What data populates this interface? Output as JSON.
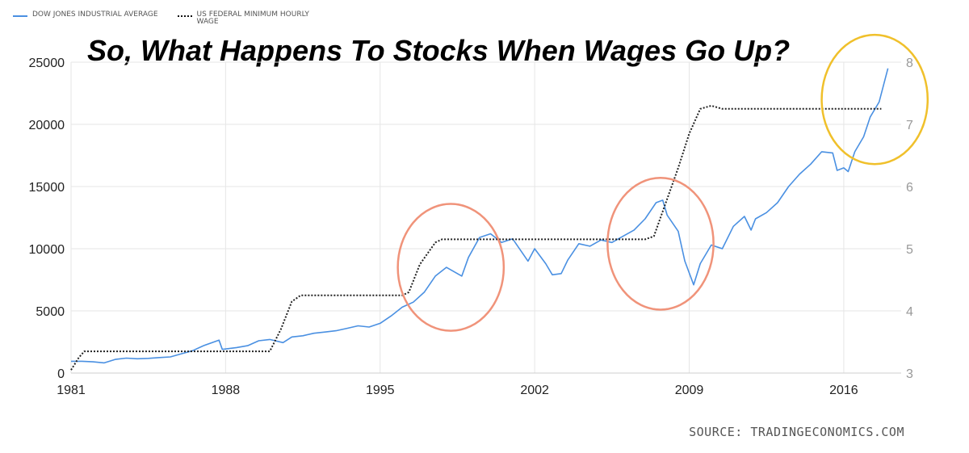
{
  "chart_data": {
    "type": "line",
    "title": "So, What Happens To Stocks When Wages Go Up?",
    "source": "SOURCE: TRADINGECONOMICS.COM",
    "legend": [
      "DOW JONES INDUSTRIAL AVERAGE",
      "US FEDERAL MINIMUM HOURLY\nWAGE"
    ],
    "legend_placement": "top-left",
    "grid": true,
    "x_ticks": [
      "1981",
      "1988",
      "1995",
      "2002",
      "2009",
      "2016"
    ],
    "y_left_ticks": [
      "0",
      "5000",
      "10000",
      "15000",
      "20000",
      "25000"
    ],
    "y_right_ticks": [
      "3",
      "4",
      "5",
      "6",
      "7",
      "8"
    ],
    "xlim": [
      1981,
      2018.6
    ],
    "ylim_left": [
      0,
      25000
    ],
    "ylim_right": [
      3,
      8
    ],
    "series": [
      {
        "name": "DOW JONES INDUSTRIAL AVERAGE",
        "axis": "left",
        "color": "#4a90e2",
        "points": [
          [
            1981.0,
            950
          ],
          [
            1981.5,
            950
          ],
          [
            1982.0,
            900
          ],
          [
            1982.5,
            820
          ],
          [
            1983.0,
            1100
          ],
          [
            1983.5,
            1200
          ],
          [
            1984.0,
            1150
          ],
          [
            1984.5,
            1180
          ],
          [
            1985.0,
            1250
          ],
          [
            1985.5,
            1300
          ],
          [
            1986.0,
            1550
          ],
          [
            1986.5,
            1800
          ],
          [
            1987.0,
            2200
          ],
          [
            1987.7,
            2650
          ],
          [
            1987.85,
            1900
          ],
          [
            1988.5,
            2050
          ],
          [
            1989.0,
            2200
          ],
          [
            1989.5,
            2600
          ],
          [
            1990.0,
            2700
          ],
          [
            1990.6,
            2450
          ],
          [
            1991.0,
            2900
          ],
          [
            1991.5,
            3000
          ],
          [
            1992.0,
            3200
          ],
          [
            1992.5,
            3300
          ],
          [
            1993.0,
            3400
          ],
          [
            1993.5,
            3600
          ],
          [
            1994.0,
            3800
          ],
          [
            1994.5,
            3700
          ],
          [
            1995.0,
            4000
          ],
          [
            1995.5,
            4600
          ],
          [
            1996.0,
            5300
          ],
          [
            1996.5,
            5700
          ],
          [
            1997.0,
            6500
          ],
          [
            1997.5,
            7800
          ],
          [
            1998.0,
            8500
          ],
          [
            1998.7,
            7800
          ],
          [
            1999.0,
            9300
          ],
          [
            1999.5,
            10900
          ],
          [
            2000.0,
            11200
          ],
          [
            2000.5,
            10500
          ],
          [
            2001.0,
            10800
          ],
          [
            2001.7,
            9000
          ],
          [
            2002.0,
            10000
          ],
          [
            2002.5,
            8800
          ],
          [
            2002.8,
            7900
          ],
          [
            2003.2,
            8000
          ],
          [
            2003.5,
            9100
          ],
          [
            2004.0,
            10400
          ],
          [
            2004.5,
            10200
          ],
          [
            2005.0,
            10700
          ],
          [
            2005.5,
            10500
          ],
          [
            2006.0,
            11000
          ],
          [
            2006.5,
            11500
          ],
          [
            2007.0,
            12400
          ],
          [
            2007.5,
            13700
          ],
          [
            2007.8,
            13900
          ],
          [
            2008.0,
            12700
          ],
          [
            2008.5,
            11400
          ],
          [
            2008.8,
            9000
          ],
          [
            2009.2,
            7100
          ],
          [
            2009.5,
            8800
          ],
          [
            2010.0,
            10300
          ],
          [
            2010.5,
            10000
          ],
          [
            2011.0,
            11800
          ],
          [
            2011.5,
            12600
          ],
          [
            2011.8,
            11500
          ],
          [
            2012.0,
            12400
          ],
          [
            2012.5,
            12900
          ],
          [
            2013.0,
            13700
          ],
          [
            2013.5,
            15000
          ],
          [
            2014.0,
            16000
          ],
          [
            2014.5,
            16800
          ],
          [
            2015.0,
            17800
          ],
          [
            2015.5,
            17700
          ],
          [
            2015.7,
            16300
          ],
          [
            2016.0,
            16500
          ],
          [
            2016.2,
            16200
          ],
          [
            2016.5,
            17800
          ],
          [
            2016.9,
            19000
          ],
          [
            2017.2,
            20600
          ],
          [
            2017.6,
            21800
          ],
          [
            2018.0,
            24500
          ]
        ]
      },
      {
        "name": "US FEDERAL MINIMUM HOURLY WAGE",
        "axis": "right",
        "color": "#222222",
        "points": [
          [
            1981.0,
            3.05
          ],
          [
            1981.35,
            3.25
          ],
          [
            1981.6,
            3.35
          ],
          [
            1989.5,
            3.35
          ],
          [
            1990.0,
            3.35
          ],
          [
            1990.5,
            3.7
          ],
          [
            1991.0,
            4.15
          ],
          [
            1991.4,
            4.25
          ],
          [
            1996.0,
            4.25
          ],
          [
            1996.3,
            4.3
          ],
          [
            1996.8,
            4.75
          ],
          [
            1997.5,
            5.1
          ],
          [
            1997.8,
            5.15
          ],
          [
            2007.0,
            5.15
          ],
          [
            2007.4,
            5.2
          ],
          [
            2007.8,
            5.6
          ],
          [
            2008.5,
            6.3
          ],
          [
            2009.0,
            6.85
          ],
          [
            2009.5,
            7.25
          ],
          [
            2010.0,
            7.3
          ],
          [
            2010.5,
            7.25
          ],
          [
            2017.7,
            7.25
          ]
        ]
      }
    ],
    "annotations": [
      {
        "type": "ellipse",
        "color": "#f0937a",
        "cx": 1998.2,
        "cy": 8500,
        "rx": 2.4,
        "ry": 5100
      },
      {
        "type": "ellipse",
        "color": "#f0937a",
        "cx": 2007.7,
        "cy": 10400,
        "rx": 2.4,
        "ry": 5300
      },
      {
        "type": "ellipse",
        "color": "#f0c02b",
        "cx": 2017.4,
        "cy": 22000,
        "rx": 2.4,
        "ry": 5200
      }
    ]
  }
}
